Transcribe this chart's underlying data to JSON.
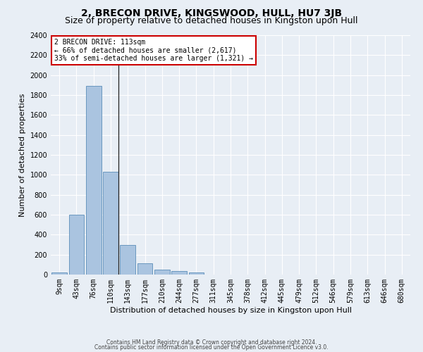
{
  "title": "2, BRECON DRIVE, KINGSWOOD, HULL, HU7 3JB",
  "subtitle": "Size of property relative to detached houses in Kingston upon Hull",
  "xlabel": "Distribution of detached houses by size in Kingston upon Hull",
  "ylabel": "Number of detached properties",
  "bin_labels": [
    "9sqm",
    "43sqm",
    "76sqm",
    "110sqm",
    "143sqm",
    "177sqm",
    "210sqm",
    "244sqm",
    "277sqm",
    "311sqm",
    "345sqm",
    "378sqm",
    "412sqm",
    "445sqm",
    "479sqm",
    "512sqm",
    "546sqm",
    "579sqm",
    "613sqm",
    "646sqm",
    "680sqm"
  ],
  "bar_values": [
    20,
    600,
    1890,
    1030,
    295,
    110,
    50,
    35,
    20,
    0,
    0,
    0,
    0,
    0,
    0,
    0,
    0,
    0,
    0,
    0,
    0
  ],
  "bar_color": "#aac4e0",
  "bar_edge_color": "#5b8db8",
  "annotation_text_line1": "2 BRECON DRIVE: 113sqm",
  "annotation_text_line2": "← 66% of detached houses are smaller (2,617)",
  "annotation_text_line3": "33% of semi-detached houses are larger (1,321) →",
  "annotation_box_color": "#ffffff",
  "annotation_box_edge_color": "#cc0000",
  "property_line_x": 3,
  "ylim": [
    0,
    2400
  ],
  "yticks": [
    0,
    200,
    400,
    600,
    800,
    1000,
    1200,
    1400,
    1600,
    1800,
    2000,
    2200,
    2400
  ],
  "footer_line1": "Contains HM Land Registry data © Crown copyright and database right 2024.",
  "footer_line2": "Contains public sector information licensed under the Open Government Licence v3.0.",
  "bg_color": "#e8eef5",
  "grid_color": "#ffffff",
  "title_fontsize": 10,
  "subtitle_fontsize": 9,
  "axis_label_fontsize": 8,
  "tick_fontsize": 7,
  "annotation_fontsize": 7,
  "footer_fontsize": 5.5
}
